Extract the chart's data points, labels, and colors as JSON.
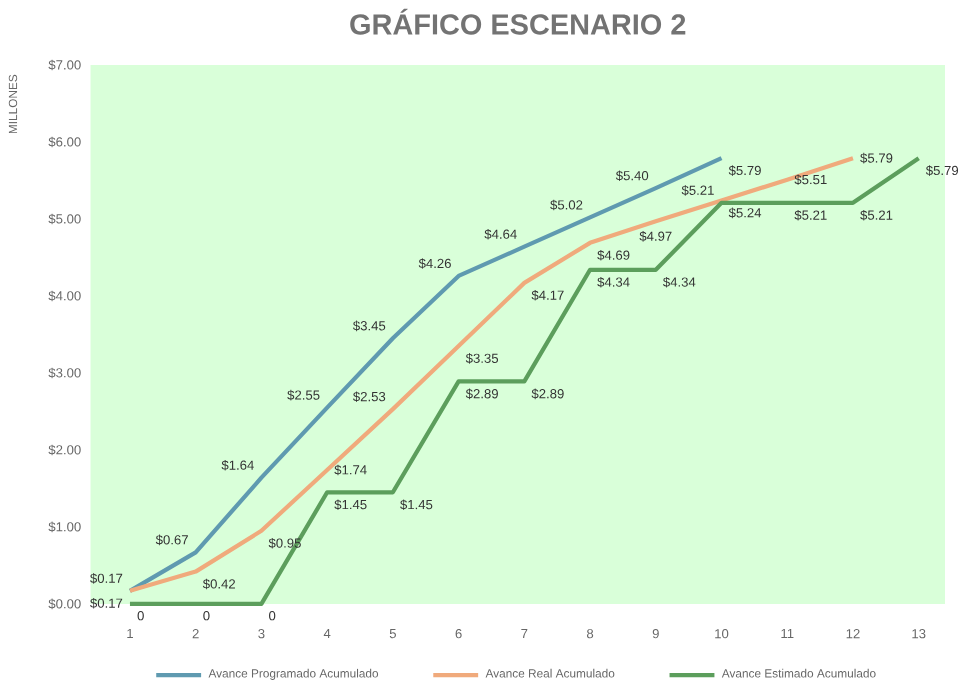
{
  "chart_data": {
    "type": "line",
    "title": "GRÁFICO ESCENARIO 2",
    "ylabel": "MILLONES",
    "categories": [
      "1",
      "2",
      "3",
      "4",
      "5",
      "6",
      "7",
      "8",
      "9",
      "10",
      "11",
      "12",
      "13"
    ],
    "series": [
      {
        "name": "Avance Programado Acumulado",
        "color": "#5f9ab0",
        "values": [
          0.17,
          0.67,
          1.64,
          2.55,
          3.45,
          4.26,
          4.64,
          5.02,
          5.4,
          5.79,
          null,
          null,
          null
        ],
        "value_labels": [
          "$0.17",
          "$0.67",
          "$1.64",
          "$2.55",
          "$3.45",
          "$4.26",
          "$4.64",
          "$5.02",
          "$5.40",
          "$5.79",
          null,
          null,
          null
        ]
      },
      {
        "name": "Avance Real Acumulado",
        "color": "#f0aa7c",
        "values": [
          0.17,
          0.42,
          0.95,
          1.74,
          2.53,
          3.35,
          4.17,
          4.69,
          4.97,
          5.24,
          5.51,
          5.79,
          null
        ],
        "value_labels": [
          "$0.17",
          "$0.42",
          "$0.95",
          "$1.74",
          "$2.53",
          "$3.35",
          "$4.17",
          "$4.69",
          "$4.97",
          "$5.24",
          "$5.51",
          "$5.79",
          null
        ]
      },
      {
        "name": "Avance Estimado Acumulado",
        "color": "#5c9e5c",
        "values": [
          0,
          0,
          0,
          1.45,
          1.45,
          2.89,
          2.89,
          4.34,
          4.34,
          5.21,
          5.21,
          5.21,
          5.79
        ],
        "value_labels": [
          "0",
          "0",
          "0",
          "$1.45",
          "$1.45",
          "$2.89",
          "$2.89",
          "$4.34",
          "$4.34",
          "$5.21",
          "$5.21",
          "$5.21",
          "$5.79"
        ]
      }
    ],
    "ylim": [
      0,
      7
    ],
    "yticks": [
      {
        "value": 0,
        "label": "$0.00"
      },
      {
        "value": 1,
        "label": "$1.00"
      },
      {
        "value": 2,
        "label": "$2.00"
      },
      {
        "value": 3,
        "label": "$3.00"
      },
      {
        "value": 4,
        "label": "$4.00"
      },
      {
        "value": 5,
        "label": "$5.00"
      },
      {
        "value": 6,
        "label": "$6.00"
      },
      {
        "value": 7,
        "label": "$7.00"
      }
    ],
    "legend": "bottom",
    "grid": false,
    "marker": "none",
    "line_style": "solid"
  }
}
